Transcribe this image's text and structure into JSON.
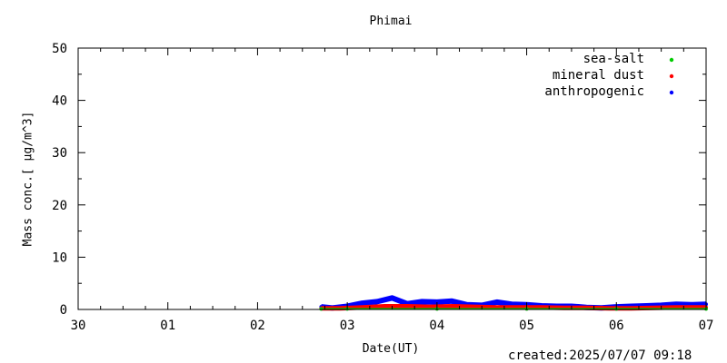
{
  "chart_data": {
    "type": "scatter",
    "title": "Phimai",
    "xlabel": "Date(UT)",
    "ylabel": "Mass conc.[ μg/m^3]",
    "x_range": [
      "2025-06-30 00:00",
      "2025-07-07 00:00"
    ],
    "x_tick_labels": [
      "30",
      "01",
      "02",
      "03",
      "04",
      "05",
      "06",
      "07"
    ],
    "ylim": [
      0,
      50
    ],
    "y_tick_labels": [
      "0",
      "10",
      "20",
      "30",
      "40",
      "50"
    ],
    "legend_position": "top-right",
    "grid": false,
    "series": [
      {
        "name": "sea-salt",
        "color": "#00cc00",
        "x": [
          "2025-07-02 17:00",
          "2025-07-03 00:00",
          "2025-07-04 00:00",
          "2025-07-05 00:00",
          "2025-07-06 00:00",
          "2025-07-07 00:00"
        ],
        "y": [
          0.1,
          0.1,
          0.1,
          0.1,
          0.1,
          0.1
        ]
      },
      {
        "name": "mineral dust",
        "color": "#ff0000",
        "x": [
          "2025-07-02 17:00",
          "2025-07-02 22:00",
          "2025-07-03 04:00",
          "2025-07-03 10:00",
          "2025-07-03 16:00",
          "2025-07-03 22:00",
          "2025-07-04 04:00",
          "2025-07-04 10:00",
          "2025-07-04 16:00",
          "2025-07-04 22:00",
          "2025-07-05 04:00",
          "2025-07-05 10:00",
          "2025-07-05 16:00",
          "2025-07-05 22:00",
          "2025-07-06 04:00",
          "2025-07-06 10:00",
          "2025-07-06 16:00",
          "2025-07-06 22:00",
          "2025-07-07 00:00"
        ],
        "y": [
          0.2,
          0.2,
          0.4,
          0.6,
          0.6,
          0.5,
          0.6,
          0.5,
          0.4,
          0.4,
          0.4,
          0.3,
          0.3,
          0.2,
          0.2,
          0.3,
          0.4,
          0.4,
          0.4
        ]
      },
      {
        "name": "anthropogenic",
        "color": "#0000ff",
        "x": [
          "2025-07-02 17:00",
          "2025-07-02 20:00",
          "2025-07-03 00:00",
          "2025-07-03 04:00",
          "2025-07-03 08:00",
          "2025-07-03 12:00",
          "2025-07-03 16:00",
          "2025-07-03 20:00",
          "2025-07-04 00:00",
          "2025-07-04 04:00",
          "2025-07-04 08:00",
          "2025-07-04 12:00",
          "2025-07-04 16:00",
          "2025-07-04 20:00",
          "2025-07-05 00:00",
          "2025-07-05 04:00",
          "2025-07-05 08:00",
          "2025-07-05 12:00",
          "2025-07-05 16:00",
          "2025-07-05 20:00",
          "2025-07-06 00:00",
          "2025-07-06 04:00",
          "2025-07-06 08:00",
          "2025-07-06 12:00",
          "2025-07-06 16:00",
          "2025-07-06 20:00",
          "2025-07-07 00:00"
        ],
        "y": [
          0.5,
          0.3,
          0.6,
          1.2,
          1.5,
          2.2,
          1.1,
          1.5,
          1.4,
          1.6,
          0.9,
          0.8,
          1.4,
          1.0,
          0.9,
          0.7,
          0.6,
          0.6,
          0.4,
          0.3,
          0.5,
          0.6,
          0.7,
          0.8,
          1.0,
          0.9,
          1.0
        ]
      }
    ]
  },
  "footer": {
    "created": "created:2025/07/07 09:18"
  }
}
